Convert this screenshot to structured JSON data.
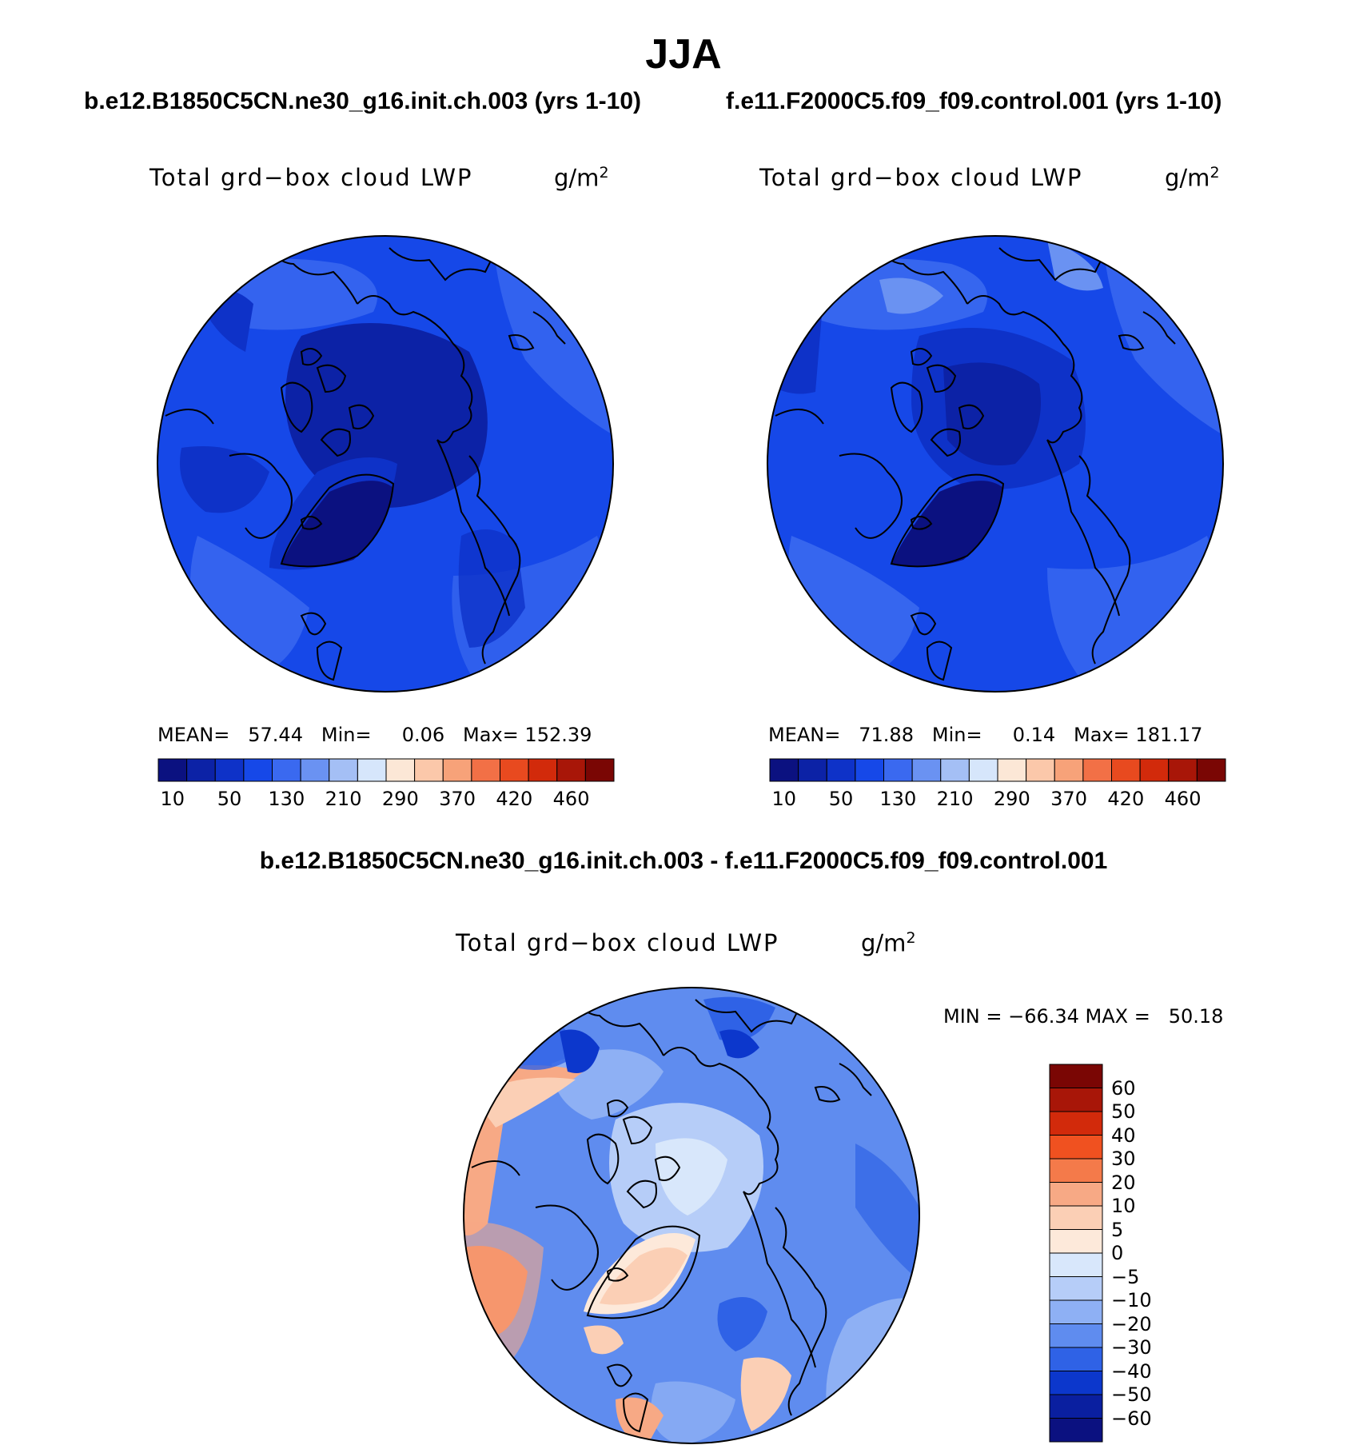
{
  "title": "JJA",
  "panels": [
    {
      "case_title": "b.e12.B1850C5CN.ne30_g16.init.ch.003 (yrs 1-10)",
      "variable": "Total grd−box cloud LWP",
      "units_base": "g/m",
      "units_exp": "2",
      "stats": {
        "mean_label": "MEAN=",
        "mean": "57.44",
        "min_label": "Min=",
        "min": "0.06",
        "max_label": "Max=",
        "max": "152.39"
      }
    },
    {
      "case_title": "f.e11.F2000C5.f09_f09.control.001 (yrs 1-10)",
      "variable": "Total grd−box cloud LWP",
      "units_base": "g/m",
      "units_exp": "2",
      "stats": {
        "mean_label": "MEAN=",
        "mean": "71.88",
        "min_label": "Min=",
        "min": "0.14",
        "max_label": "Max=",
        "max": "181.17"
      }
    }
  ],
  "colorbar_levels": [
    "10",
    "50",
    "130",
    "210",
    "290",
    "370",
    "420",
    "460"
  ],
  "colorbar_colors": [
    "#0b1180",
    "#0c22a6",
    "#0e32c8",
    "#1648e8",
    "#3a69f0",
    "#6a92f2",
    "#a4bff5",
    "#d6e6fb",
    "#fce7d6",
    "#fbc8aa",
    "#f7a279",
    "#f27046",
    "#e84a1f",
    "#d22a0b",
    "#a81608",
    "#7a0604"
  ],
  "difference": {
    "title": "b.e12.B1850C5CN.ne30_g16.init.ch.003 - f.e11.F2000C5.f09_f09.control.001",
    "variable": "Total grd−box cloud LWP",
    "units_base": "g/m",
    "units_exp": "2",
    "min_max_label": "MIN = −66.34 MAX =   50.18",
    "colorbar_levels": [
      "60",
      "50",
      "40",
      "30",
      "20",
      "10",
      "5",
      "0",
      "−5",
      "−10",
      "−20",
      "−30",
      "−40",
      "−50",
      "−60"
    ],
    "colorbar_colors": [
      "#7a0604",
      "#a81608",
      "#d22a0b",
      "#f05120",
      "#f47a4a",
      "#f7a985",
      "#fbcfb5",
      "#fde9da",
      "#d8e7fb",
      "#b6cdf8",
      "#8eb0f4",
      "#5f8cef",
      "#2f62e6",
      "#0c37cc",
      "#0a1fa0",
      "#0b1180"
    ]
  },
  "colors": {
    "map_background": "#1b4fe6",
    "arctic_dark": "#0c22a6",
    "greenland": "#0b1180",
    "diff_background": "#3a69f0",
    "diff_light": "#d8e7fb",
    "diff_warm": "#f7a985"
  }
}
